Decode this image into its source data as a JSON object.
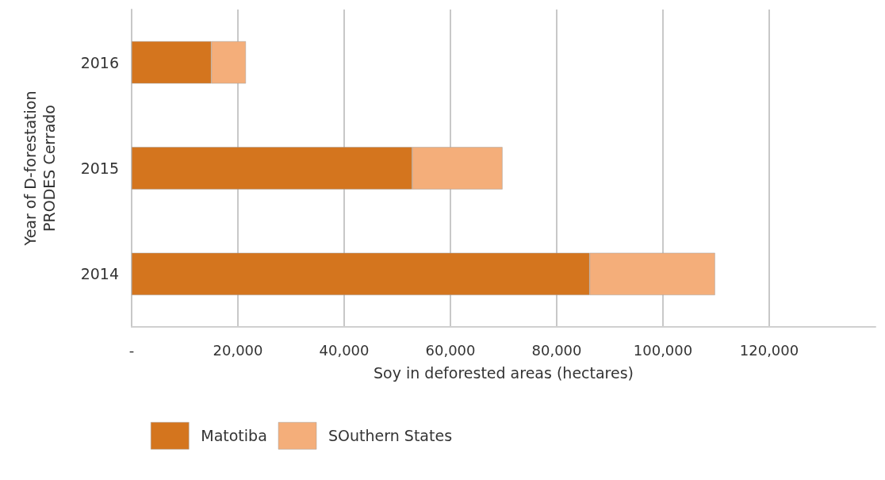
{
  "chart_data": {
    "type": "bar",
    "orientation": "horizontal",
    "stacked": true,
    "xlabel": "Soy in deforested areas (hectares)",
    "ylabel": "Year of D-forestation\nPRODES Cerrado",
    "categories": [
      "2016",
      "2015",
      "2014"
    ],
    "series": [
      {
        "name": "Matotiba",
        "color": "#d4751e",
        "values": [
          15000,
          52800,
          86200
        ]
      },
      {
        "name": "SOuthern States",
        "color": "#f4ae7a",
        "values": [
          6500,
          17000,
          23600
        ]
      }
    ],
    "xlim": [
      0,
      140000
    ],
    "xticks": [
      {
        "value": 0,
        "label": "-"
      },
      {
        "value": 20000,
        "label": "20,000"
      },
      {
        "value": 40000,
        "label": "40,000"
      },
      {
        "value": 60000,
        "label": "60,000"
      },
      {
        "value": 80000,
        "label": "80,000"
      },
      {
        "value": 100000,
        "label": "100,000"
      },
      {
        "value": 120000,
        "label": "120,000"
      }
    ],
    "grid": "x",
    "legend": "bottom left"
  }
}
